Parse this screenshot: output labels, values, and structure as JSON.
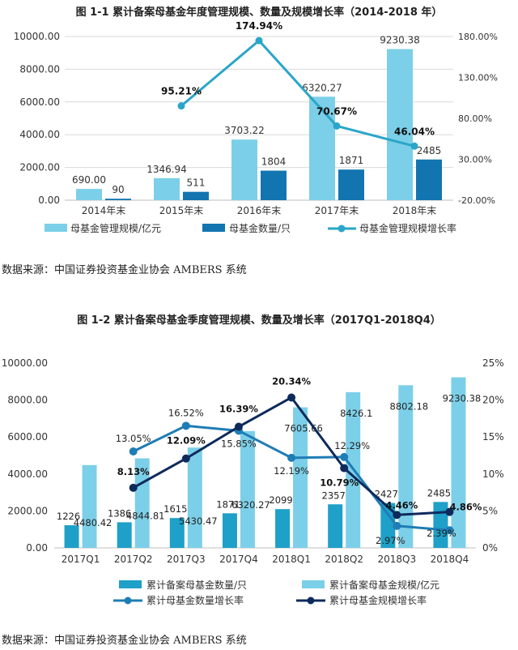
{
  "chart_data": [
    {
      "type": "bar",
      "title": "图 1-1  累计备案母基金年度管理规模、数量及规模增长率（2014-2018 年）",
      "categories": [
        "2014年末",
        "2015年末",
        "2016年末",
        "2017年末",
        "2018年末"
      ],
      "y_ticks": [
        "0.00",
        "2000.00",
        "4000.00",
        "6000.00",
        "8000.00",
        "10000.00"
      ],
      "y2_ticks": [
        "-20.00%",
        "30.00%",
        "80.00%",
        "130.00%",
        "180.00%"
      ],
      "ylim": [
        0,
        10000
      ],
      "y2lim": [
        -20,
        180
      ],
      "series": [
        {
          "name": "母基金管理规模/亿元",
          "kind": "bar",
          "color": "#7ccfe8",
          "values": [
            690.0,
            1346.94,
            3703.22,
            6320.27,
            9230.38
          ],
          "labels": [
            "690.00",
            "1346.94",
            "3703.22",
            "6320.27",
            "9230.38"
          ]
        },
        {
          "name": "母基金数量/只",
          "kind": "bar",
          "color": "#1275b0",
          "values": [
            90,
            511,
            1804,
            1871,
            2485
          ],
          "labels": [
            "90",
            "511",
            "1804",
            "1871",
            "2485"
          ]
        },
        {
          "name": "母基金管理规模增长率",
          "kind": "line",
          "axis": "right",
          "color": "#2aa6c9",
          "values": [
            null,
            95.21,
            174.94,
            70.67,
            46.04
          ],
          "labels": [
            "",
            "95.21%",
            "174.94%",
            "70.67%",
            "46.04%"
          ]
        }
      ]
    },
    {
      "type": "bar",
      "title": "图 1-2  累计备案母基金季度管理规模、数量及增长率（2017Q1-2018Q4）",
      "categories": [
        "2017Q1",
        "2017Q2",
        "2017Q3",
        "2017Q4",
        "2018Q1",
        "2018Q2",
        "2018Q3",
        "2018Q4"
      ],
      "y_ticks": [
        "0.00",
        "2000.00",
        "4000.00",
        "6000.00",
        "8000.00",
        "10000.00"
      ],
      "y2_ticks": [
        "0%",
        "5%",
        "10%",
        "15%",
        "20%",
        "25%"
      ],
      "ylim": [
        0,
        10000
      ],
      "y2lim": [
        0,
        25
      ],
      "series": [
        {
          "name": "累计备案母基金数量/只",
          "kind": "bar",
          "color": "#1ea0c8",
          "values": [
            1226,
            1386,
            1615,
            1871,
            2099,
            2357,
            2427,
            2485
          ],
          "labels": [
            "1226",
            "1386",
            "1615",
            "1871",
            "2099",
            "2357",
            "2427",
            "2485"
          ]
        },
        {
          "name": "累计备案母基金规模/亿元",
          "kind": "bar",
          "color": "#7ccfe8",
          "values": [
            4480.42,
            4844.81,
            5430.47,
            6320.27,
            7605.66,
            8426.1,
            8802.18,
            9230.38
          ],
          "labels": [
            "4480.42",
            "4844.81",
            "5430.47",
            "6320.27",
            "7605.66",
            "8426.1",
            "8802.18",
            "9230.38"
          ]
        },
        {
          "name": "累计母基金数量增长率",
          "kind": "line",
          "axis": "right",
          "color": "#1f7db5",
          "values": [
            null,
            13.05,
            16.52,
            15.85,
            12.19,
            12.29,
            2.97,
            2.39
          ],
          "labels": [
            "",
            "13.05%",
            "16.52%",
            "15.85%",
            "12.19%",
            "12.29%",
            "2.97%",
            "2.39%"
          ]
        },
        {
          "name": "累计母基金规模增长率",
          "kind": "line",
          "axis": "right",
          "color": "#0e2a5c",
          "values": [
            null,
            8.13,
            12.09,
            16.39,
            20.34,
            10.79,
            4.46,
            4.86
          ],
          "labels": [
            "",
            "8.13%",
            "12.09%",
            "16.39%",
            "20.34%",
            "10.79%",
            "4.46%",
            "4.86%"
          ]
        }
      ]
    }
  ],
  "source_1": "数据来源：中国证券投资基金业协会 AMBERS 系统",
  "source_2": "数据来源：中国证券投资基金业协会 AMBERS 系统"
}
